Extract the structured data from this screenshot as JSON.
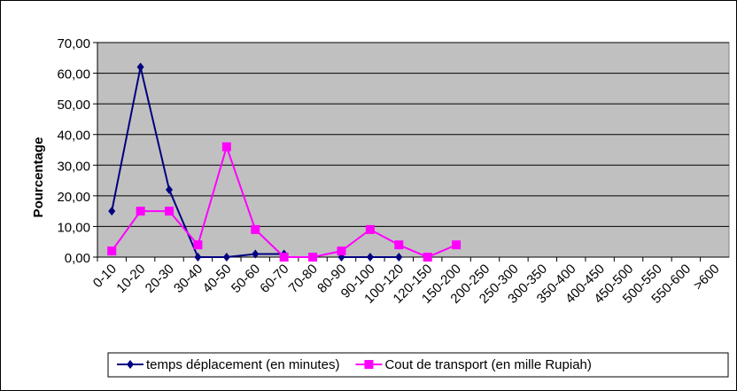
{
  "chart_data": {
    "type": "line",
    "y_label": "Pourcentage",
    "categories": [
      "0-10",
      "10-20",
      "20-30",
      "30-40",
      "40-50",
      "50-60",
      "60-70",
      "70-80",
      "80-90",
      "90-100",
      "100-120",
      "120-150",
      "150-200",
      "200-250",
      "250-300",
      "300-350",
      "350-400",
      "400-450",
      "450-500",
      "500-550",
      "550-600",
      ">600"
    ],
    "series": [
      {
        "name": "temps déplacement (en minutes)",
        "color": "#000080",
        "marker": "diamond",
        "values": [
          15,
          62,
          22,
          0,
          0,
          1,
          1,
          null,
          0,
          0,
          0,
          null,
          null,
          null,
          null,
          null,
          null,
          null,
          null,
          null,
          null,
          null
        ]
      },
      {
        "name": "Cout de transport (en mille Rupiah)",
        "color": "#ff00ff",
        "marker": "square",
        "values": [
          2,
          15,
          15,
          4,
          36,
          9,
          0,
          0,
          2,
          9,
          4,
          0,
          4,
          null,
          null,
          null,
          null,
          null,
          null,
          null,
          null,
          null
        ]
      }
    ],
    "ylim": [
      0,
      70
    ],
    "yticks": [
      {
        "value": 0,
        "label": "0,00"
      },
      {
        "value": 10,
        "label": "10,00"
      },
      {
        "value": 20,
        "label": "20,00"
      },
      {
        "value": 30,
        "label": "30,00"
      },
      {
        "value": 40,
        "label": "40,00"
      },
      {
        "value": 50,
        "label": "50,00"
      },
      {
        "value": 60,
        "label": "60,00"
      },
      {
        "value": 70,
        "label": "70,00"
      }
    ],
    "grid": true,
    "legend": "bottom",
    "plot_background": "#c0c0c0"
  }
}
